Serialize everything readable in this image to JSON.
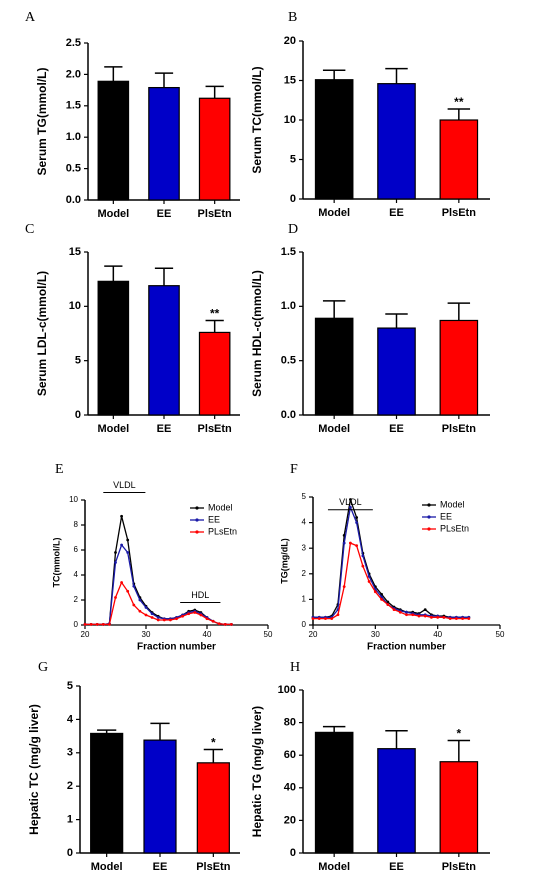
{
  "chart_data": [
    {
      "type": "bar",
      "panel": "A",
      "y_label": "Serum TG(mmol/L)",
      "categories": [
        "Model",
        "EE",
        "PlsEtn"
      ],
      "values": [
        1.89,
        1.79,
        1.62
      ],
      "errors": [
        0.23,
        0.23,
        0.19
      ],
      "colors": [
        "#000000",
        "#0000c8",
        "#ff0000"
      ],
      "ylim": [
        0,
        2.5
      ],
      "yticks": [
        {
          "value": 0,
          "label": "0.0"
        },
        0.5,
        {
          "value": 1,
          "label": "1.0"
        },
        1.5,
        {
          "value": 2,
          "label": "2.0"
        },
        2.5
      ]
    },
    {
      "type": "bar",
      "panel": "B",
      "y_label": "Serum TC(mmol/L)",
      "categories": [
        "Model",
        "EE",
        "PlsEtn"
      ],
      "values": [
        15.1,
        14.6,
        10.0
      ],
      "errors": [
        1.2,
        1.9,
        1.4
      ],
      "colors": [
        "#000000",
        "#0000c8",
        "#ff0000"
      ],
      "ylim": [
        0,
        20
      ],
      "yticks": [
        0,
        5,
        10,
        15,
        20
      ],
      "annotations": [
        {
          "text": "**",
          "category": "PlsEtn"
        }
      ]
    },
    {
      "type": "bar",
      "panel": "C",
      "y_label": "Serum LDL-c(mmol/L)",
      "categories": [
        "Model",
        "EE",
        "PlsEtn"
      ],
      "values": [
        12.3,
        11.9,
        7.6
      ],
      "errors": [
        1.4,
        1.6,
        1.1
      ],
      "colors": [
        "#000000",
        "#0000c8",
        "#ff0000"
      ],
      "ylim": [
        0,
        15
      ],
      "yticks": [
        0,
        5,
        10,
        15
      ],
      "annotations": [
        {
          "text": "**",
          "category": "PlsEtn"
        }
      ]
    },
    {
      "type": "bar",
      "panel": "D",
      "y_label": "Serum HDL-c(mmol/L)",
      "categories": [
        "Model",
        "EE",
        "PlsEtn"
      ],
      "values": [
        0.89,
        0.8,
        0.87
      ],
      "errors": [
        0.16,
        0.13,
        0.16
      ],
      "colors": [
        "#000000",
        "#0000c8",
        "#ff0000"
      ],
      "ylim": [
        0,
        1.5
      ],
      "yticks": [
        {
          "value": 0,
          "label": "0.0"
        },
        0.5,
        {
          "value": 1,
          "label": "1.0"
        },
        1.5
      ]
    },
    {
      "type": "line",
      "panel": "E",
      "y_label": "TC(mmol/L)",
      "x_label": "Fraction number",
      "legend": "upper right",
      "annotations": [
        "VLDL",
        "HDL"
      ],
      "x": [
        20,
        21,
        22,
        23,
        24,
        25,
        26,
        27,
        28,
        29,
        30,
        31,
        32,
        33,
        34,
        35,
        36,
        37,
        38,
        39,
        40,
        41,
        42,
        43,
        44
      ],
      "series": [
        {
          "name": "Model",
          "color": "#000000",
          "values": [
            0.05,
            0.05,
            0.05,
            0.05,
            0.1,
            5.8,
            8.7,
            6.8,
            3.3,
            2.2,
            1.5,
            1.0,
            0.7,
            0.5,
            0.5,
            0.6,
            0.8,
            1.1,
            1.2,
            1.0,
            0.6,
            0.3,
            0.1,
            0.05,
            0.05
          ]
        },
        {
          "name": "EE",
          "color": "#1a1aa8",
          "values": [
            0.05,
            0.05,
            0.05,
            0.05,
            0.1,
            5.0,
            6.4,
            5.8,
            3.1,
            2.0,
            1.4,
            0.9,
            0.6,
            0.5,
            0.5,
            0.6,
            0.8,
            1.0,
            1.1,
            0.9,
            0.6,
            0.3,
            0.1,
            0.05,
            0.05
          ]
        },
        {
          "name": "PLsEtn",
          "color": "#ff0000",
          "values": [
            0.05,
            0.05,
            0.05,
            0.05,
            0.05,
            2.2,
            3.4,
            2.7,
            1.6,
            1.1,
            0.8,
            0.6,
            0.4,
            0.4,
            0.4,
            0.5,
            0.7,
            0.9,
            1.0,
            0.8,
            0.5,
            0.3,
            0.1,
            0.05,
            0.05
          ]
        }
      ],
      "xlim": [
        20,
        50
      ],
      "xticks": [
        20,
        30,
        40,
        50
      ],
      "ylim": [
        0,
        10
      ],
      "yticks": [
        0,
        2,
        4,
        6,
        8,
        10
      ]
    },
    {
      "type": "line",
      "panel": "F",
      "y_label": "TG(mg/dL)",
      "x_label": "Fraction number",
      "legend": "upper right",
      "annotations": [
        "VLDL"
      ],
      "x": [
        20,
        21,
        22,
        23,
        24,
        25,
        26,
        27,
        28,
        29,
        30,
        31,
        32,
        33,
        34,
        35,
        36,
        37,
        38,
        39,
        40,
        41,
        42,
        43,
        44,
        45
      ],
      "series": [
        {
          "name": "Model",
          "color": "#000000",
          "values": [
            0.3,
            0.3,
            0.3,
            0.35,
            0.8,
            3.5,
            4.9,
            4.2,
            2.8,
            2.0,
            1.5,
            1.2,
            0.9,
            0.7,
            0.6,
            0.5,
            0.5,
            0.45,
            0.6,
            0.4,
            0.35,
            0.35,
            0.3,
            0.3,
            0.3,
            0.3
          ]
        },
        {
          "name": "EE",
          "color": "#1a1aa8",
          "values": [
            0.3,
            0.3,
            0.3,
            0.3,
            0.6,
            3.2,
            4.6,
            4.0,
            2.7,
            1.9,
            1.4,
            1.1,
            0.8,
            0.65,
            0.55,
            0.5,
            0.45,
            0.4,
            0.4,
            0.35,
            0.35,
            0.3,
            0.3,
            0.3,
            0.3,
            0.3
          ]
        },
        {
          "name": "PLsEtn",
          "color": "#ff0000",
          "values": [
            0.25,
            0.25,
            0.25,
            0.25,
            0.4,
            1.5,
            3.2,
            3.1,
            2.3,
            1.7,
            1.3,
            1.0,
            0.8,
            0.6,
            0.5,
            0.4,
            0.4,
            0.35,
            0.35,
            0.3,
            0.3,
            0.3,
            0.25,
            0.25,
            0.25,
            0.25
          ]
        }
      ],
      "xlim": [
        20,
        50
      ],
      "xticks": [
        20,
        30,
        40,
        50
      ],
      "ylim": [
        0,
        5
      ],
      "yticks": [
        0,
        1,
        2,
        3,
        4,
        5
      ]
    },
    {
      "type": "bar",
      "panel": "G",
      "y_label": "Hepatic TC (mg/g liver)",
      "categories": [
        "Model",
        "EE",
        "PlsEtn"
      ],
      "values": [
        3.58,
        3.38,
        2.7
      ],
      "errors": [
        0.1,
        0.5,
        0.4
      ],
      "colors": [
        "#000000",
        "#0000c8",
        "#ff0000"
      ],
      "ylim": [
        0,
        5
      ],
      "yticks": [
        0,
        1,
        2,
        3,
        4,
        5
      ],
      "annotations": [
        {
          "text": "*",
          "category": "PlsEtn"
        }
      ]
    },
    {
      "type": "bar",
      "panel": "H",
      "y_label": "Hepatic TG (mg/g liver)",
      "categories": [
        "Model",
        "EE",
        "PlsEtn"
      ],
      "values": [
        74,
        64,
        56
      ],
      "errors": [
        3.5,
        11,
        13
      ],
      "colors": [
        "#000000",
        "#0000c8",
        "#ff0000"
      ],
      "ylim": [
        0,
        100
      ],
      "yticks": [
        0,
        20,
        40,
        60,
        80,
        100
      ],
      "annotations": [
        {
          "text": "*",
          "category": "PlsEtn"
        }
      ]
    }
  ]
}
